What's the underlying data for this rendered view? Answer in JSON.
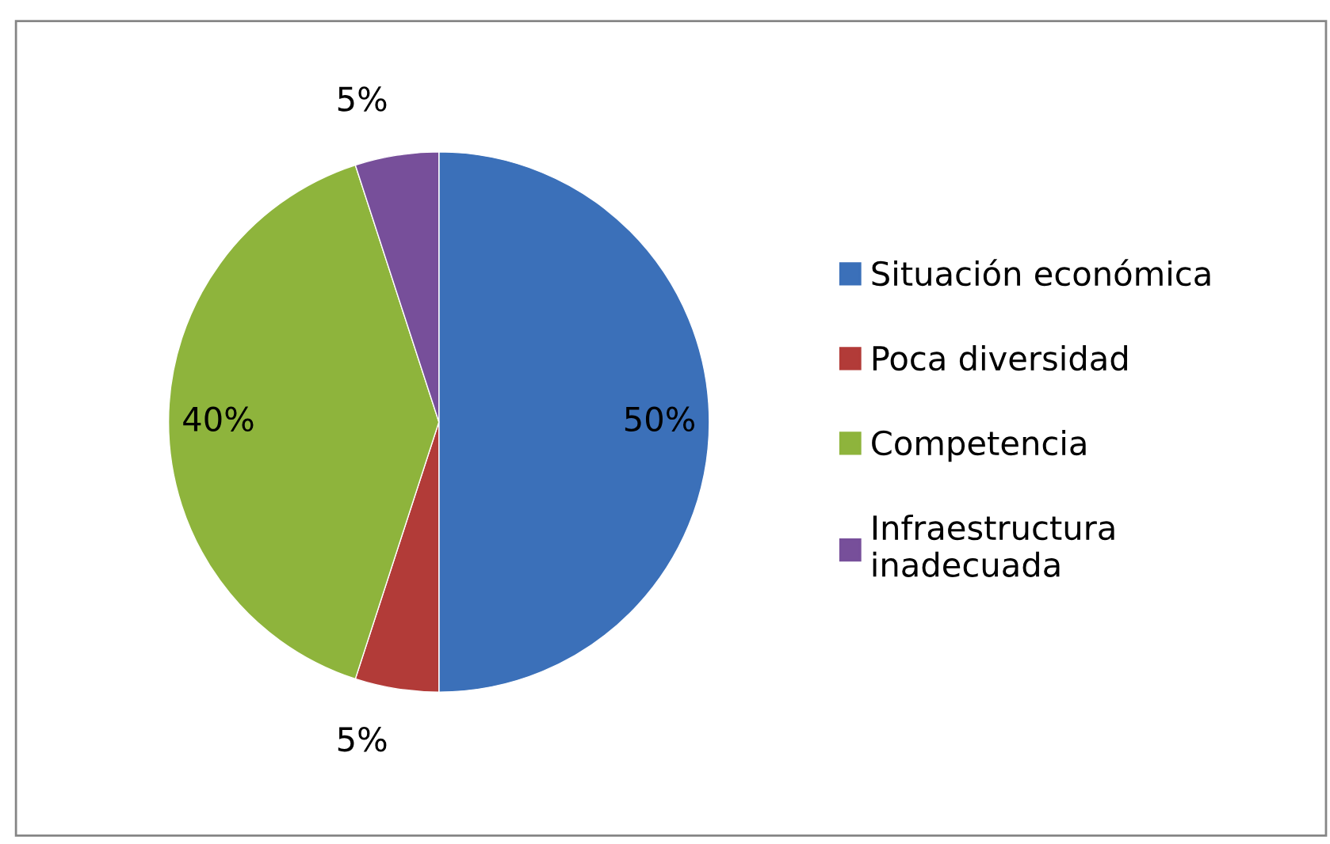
{
  "chart_data": {
    "type": "pie",
    "categories": [
      "Situación económica",
      "Poca diversidad",
      "Competencia",
      "Infraestructura\ninadecuada"
    ],
    "values": [
      50,
      5,
      40,
      5
    ],
    "value_labels": [
      "50%",
      "5%",
      "40%",
      "5%"
    ],
    "colors": [
      "#3b70b9",
      "#b23b38",
      "#8eb43c",
      "#774f9a"
    ],
    "legend": "right"
  }
}
